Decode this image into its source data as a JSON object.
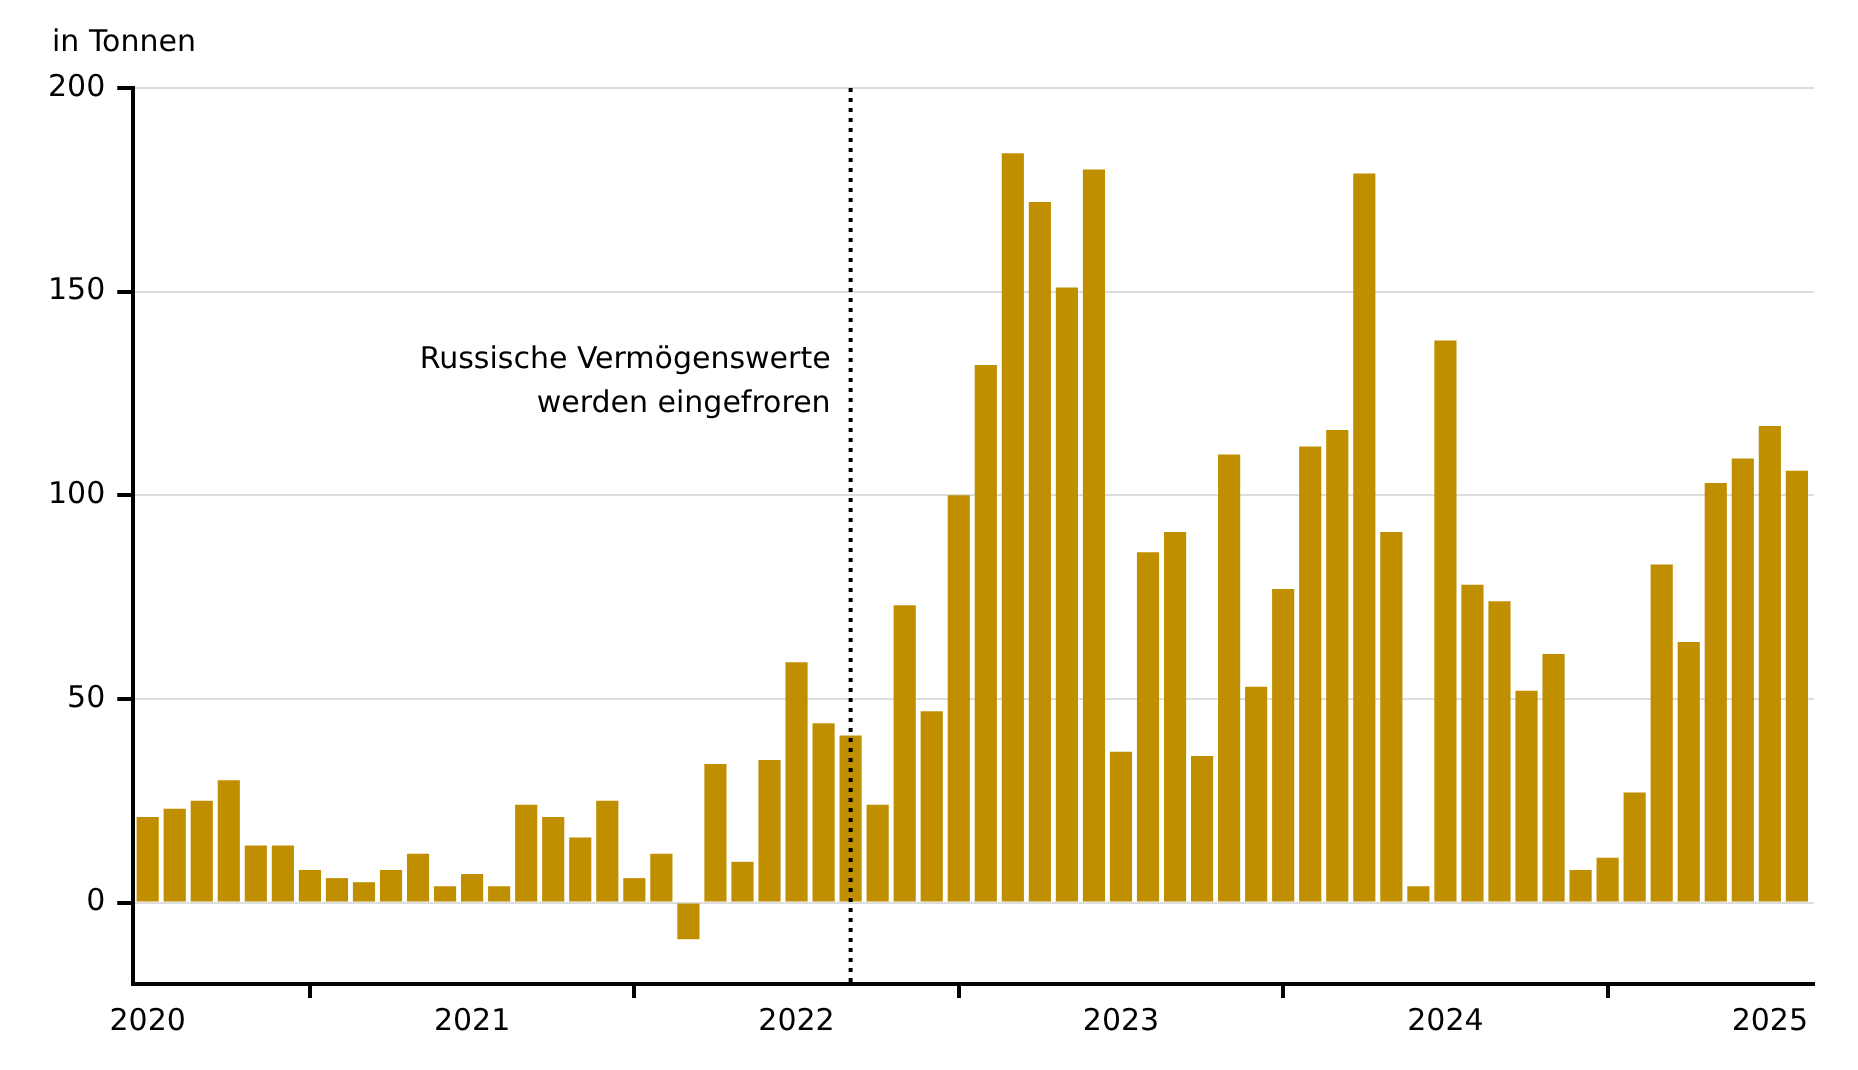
{
  "chart_data": {
    "type": "bar",
    "ylabel": "in Tonnen",
    "color": "#bf8f00",
    "x": [
      "2020-01",
      "2020-02",
      "2020-03",
      "2020-04",
      "2020-05",
      "2020-06",
      "2020-07",
      "2020-08",
      "2020-09",
      "2020-10",
      "2020-11",
      "2020-12",
      "2021-01",
      "2021-02",
      "2021-03",
      "2021-04",
      "2021-05",
      "2021-06",
      "2021-07",
      "2021-08",
      "2021-09",
      "2021-10",
      "2021-11",
      "2021-12",
      "2022-01",
      "2022-02",
      "2022-03",
      "2022-04",
      "2022-05",
      "2022-06",
      "2022-07",
      "2022-08",
      "2022-09",
      "2022-10",
      "2022-11",
      "2022-12",
      "2023-01",
      "2023-02",
      "2023-03",
      "2023-04",
      "2023-05",
      "2023-06",
      "2023-07",
      "2023-08",
      "2023-09",
      "2023-10",
      "2023-11",
      "2023-12",
      "2024-01",
      "2024-02",
      "2024-03",
      "2024-04",
      "2024-05",
      "2024-06",
      "2024-07",
      "2024-08",
      "2024-09",
      "2024-10",
      "2024-11",
      "2024-12",
      "2025-01",
      "2025-02"
    ],
    "values": [
      21,
      23,
      25,
      30,
      14,
      14,
      8,
      6,
      5,
      8,
      12,
      4,
      7,
      4,
      24,
      21,
      16,
      25,
      6,
      12,
      -9,
      34,
      10,
      35,
      59,
      44,
      41,
      24,
      73,
      47,
      100,
      132,
      184,
      172,
      151,
      180,
      37,
      86,
      91,
      36,
      110,
      53,
      77,
      112,
      116,
      179,
      91,
      4,
      138,
      78,
      74,
      52,
      61,
      8,
      11,
      27,
      83,
      64,
      103,
      109,
      117,
      106
    ],
    "xlim": [
      "2019-12-15",
      "2025-02-20"
    ],
    "xticks": [
      "2020",
      "2021",
      "2022",
      "2023",
      "2024",
      "2025"
    ],
    "ylim": [
      -20,
      200
    ],
    "yticks": [
      0,
      50,
      100,
      150,
      200
    ],
    "grid": "y",
    "ref_lines": [
      {
        "axis": "x",
        "value": "2022-03",
        "label": "Russische Vermögenswerte werden eingefroren",
        "color": "#000000",
        "line_style": "dotted"
      }
    ]
  }
}
